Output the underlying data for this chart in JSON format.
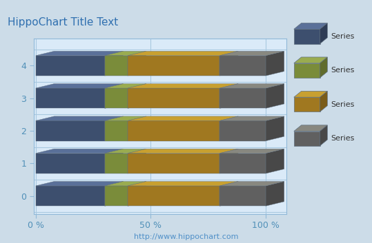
{
  "title": "HippoChart Title Text",
  "subtitle": "http://www.hippochart.com",
  "categories": [
    "0",
    "1",
    "2",
    "3",
    "4"
  ],
  "series_labels": [
    "Series",
    "Series",
    "Series",
    "Series"
  ],
  "series_colors_front": [
    "#3d4f6e",
    "#7a8c3a",
    "#a07820",
    "#606060"
  ],
  "series_colors_top": [
    "#5a7099",
    "#9aac50",
    "#c8a030",
    "#888880"
  ],
  "series_colors_right": [
    "#2e3c55",
    "#606c2c",
    "#7a5c18",
    "#484848"
  ],
  "values": [
    [
      30,
      10,
      40,
      20
    ],
    [
      30,
      10,
      40,
      20
    ],
    [
      30,
      10,
      40,
      20
    ],
    [
      30,
      10,
      40,
      20
    ],
    [
      30,
      10,
      40,
      20
    ]
  ],
  "background_color": "#ccdce8",
  "plot_bg_color": "#daeaf8",
  "xlabel_ticks": [
    "0 %",
    "50 %",
    "100 %"
  ],
  "xlabel_tick_vals": [
    0,
    50,
    100
  ],
  "bar_height": 0.62,
  "ddx": 8.0,
  "ddy": 0.22,
  "title_color": "#3070b0",
  "subtitle_color": "#5090c8",
  "axis_color": "#90b8d8",
  "tick_color": "#5090b8",
  "legend_bg": "#daeaf8",
  "grid_color": "#a8c8e0"
}
